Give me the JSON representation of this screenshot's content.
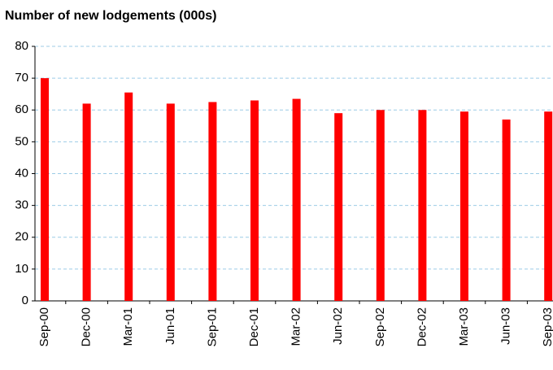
{
  "chart_data": {
    "type": "bar",
    "title": "Number of new lodgements (000s)",
    "categories": [
      "Sep-00",
      "Dec-00",
      "Mar-01",
      "Jun-01",
      "Sep-01",
      "Dec-01",
      "Mar-02",
      "Jun-02",
      "Sep-02",
      "Dec-02",
      "Mar-03",
      "Jun-03",
      "Sep-03"
    ],
    "values": [
      70,
      62,
      65.5,
      62,
      62.5,
      63,
      63.5,
      59,
      60,
      60,
      59.5,
      57,
      59.5
    ],
    "color": "#ff0000",
    "ylim": [
      0,
      80
    ],
    "yticks": [
      0,
      10,
      20,
      30,
      40,
      50,
      60,
      70,
      80
    ],
    "grid": true
  }
}
